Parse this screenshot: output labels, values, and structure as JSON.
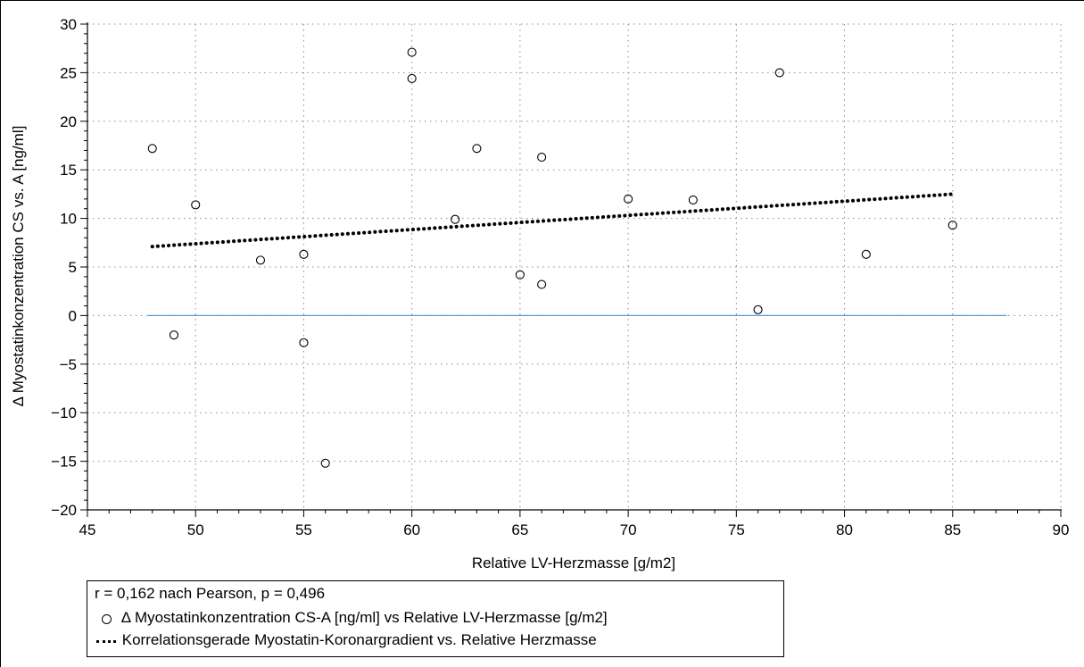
{
  "chart_data": {
    "type": "scatter",
    "xlabel": "Relative LV-Herzmasse [g/m2]",
    "ylabel": "Δ Myostatinkonzentration CS vs. A [ng/ml]",
    "xlim": [
      45,
      90
    ],
    "ylim": [
      -20,
      30
    ],
    "x_ticks": [
      45,
      50,
      55,
      60,
      65,
      70,
      75,
      80,
      85,
      90
    ],
    "y_ticks": [
      -20,
      -15,
      -10,
      -5,
      0,
      5,
      10,
      15,
      20,
      25,
      30
    ],
    "x_tick_labels": [
      "45",
      "50",
      "55",
      "60",
      "65",
      "70",
      "75",
      "80",
      "85",
      "90"
    ],
    "y_tick_labels": [
      "−20",
      "−15",
      "−10",
      "−5",
      "0",
      "5",
      "10",
      "15",
      "20",
      "25",
      "30"
    ],
    "grid": true,
    "series": [
      {
        "name": "Δ Myostatinkonzentration CS-A [ng/ml]  vs Relative LV-Herzmasse [g/m2]",
        "kind": "scatter",
        "marker": "open-circle",
        "points": [
          [
            48,
            17.2
          ],
          [
            49,
            -2.0
          ],
          [
            50,
            11.4
          ],
          [
            53,
            5.7
          ],
          [
            55,
            6.3
          ],
          [
            55,
            -2.8
          ],
          [
            56,
            -15.2
          ],
          [
            60,
            27.1
          ],
          [
            60,
            24.4
          ],
          [
            62,
            9.9
          ],
          [
            63,
            17.2
          ],
          [
            65,
            4.2
          ],
          [
            66,
            16.3
          ],
          [
            66,
            3.2
          ],
          [
            70,
            12.0
          ],
          [
            73,
            11.9
          ],
          [
            76,
            0.6
          ],
          [
            77,
            25.0
          ],
          [
            81,
            6.3
          ],
          [
            85,
            9.3
          ]
        ]
      },
      {
        "name": "Korrelationsgerade Myostatin-Koronargradient vs. Relative Herzmasse",
        "kind": "line",
        "style": "dotted",
        "points": [
          [
            48,
            7.1
          ],
          [
            85,
            12.5
          ]
        ]
      },
      {
        "kind": "line",
        "style": "solid",
        "color": "#5b9bd5",
        "points": [
          [
            47.8,
            0
          ],
          [
            87.5,
            0
          ]
        ]
      }
    ],
    "legend": {
      "placement": "bottom-left",
      "stat_text": "r = 0,162 nach Pearson, p = 0,496"
    }
  }
}
